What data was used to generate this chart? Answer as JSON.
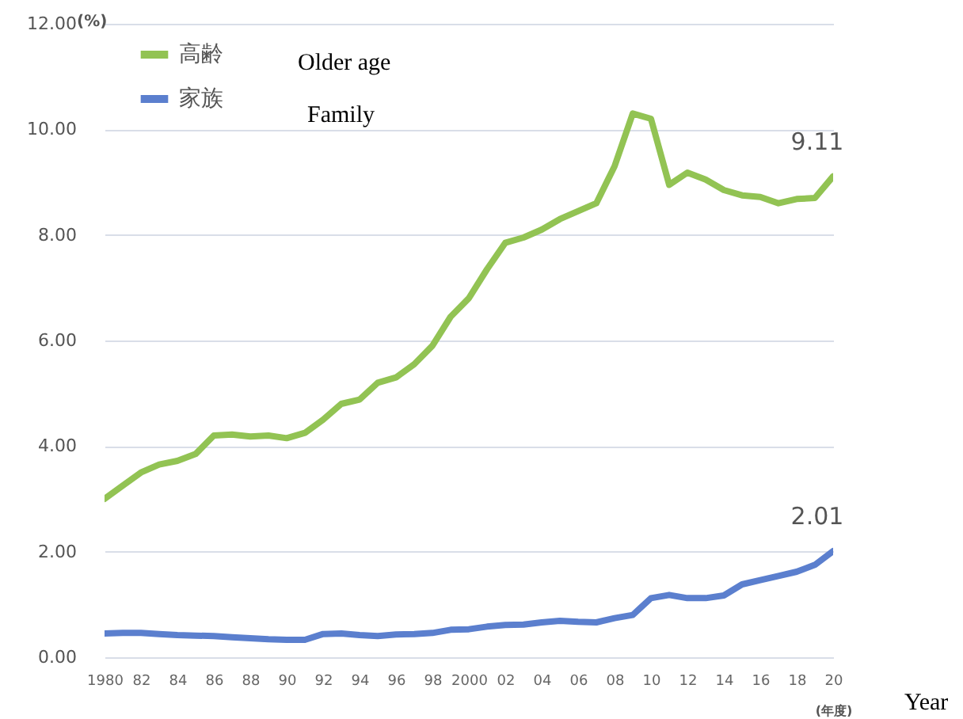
{
  "chart_data": {
    "type": "line",
    "xlabel": "(年度)",
    "ylabel": "(%)",
    "x": [
      1980,
      1981,
      1982,
      1983,
      1984,
      1985,
      1986,
      1987,
      1988,
      1989,
      1990,
      1991,
      1992,
      1993,
      1994,
      1995,
      1996,
      1997,
      1998,
      1999,
      2000,
      2001,
      2002,
      2003,
      2004,
      2005,
      2006,
      2007,
      2008,
      2009,
      2010,
      2011,
      2012,
      2013,
      2014,
      2015,
      2016,
      2017,
      2018,
      2019,
      2020
    ],
    "series": [
      {
        "name": "高齢",
        "color": "#92c353",
        "values": [
          3.0,
          3.25,
          3.5,
          3.65,
          3.72,
          3.85,
          4.2,
          4.22,
          4.18,
          4.2,
          4.15,
          4.25,
          4.5,
          4.8,
          4.88,
          5.2,
          5.3,
          5.55,
          5.9,
          6.45,
          6.8,
          7.35,
          7.85,
          7.95,
          8.1,
          8.3,
          8.45,
          8.6,
          9.3,
          10.3,
          10.2,
          8.95,
          9.18,
          9.05,
          8.85,
          8.75,
          8.72,
          8.6,
          8.68,
          8.7,
          9.11
        ],
        "value_labels": [
          null,
          null,
          null,
          null,
          null,
          null,
          null,
          null,
          null,
          null,
          null,
          null,
          null,
          null,
          null,
          null,
          null,
          null,
          null,
          null,
          null,
          null,
          null,
          null,
          null,
          null,
          null,
          null,
          null,
          null,
          null,
          null,
          null,
          null,
          null,
          null,
          null,
          null,
          null,
          null,
          "9.11"
        ]
      },
      {
        "name": "家族",
        "color": "#5b7fce",
        "values": [
          0.45,
          0.46,
          0.46,
          0.44,
          0.42,
          0.41,
          0.4,
          0.38,
          0.36,
          0.34,
          0.33,
          0.33,
          0.44,
          0.45,
          0.42,
          0.4,
          0.43,
          0.44,
          0.46,
          0.52,
          0.53,
          0.58,
          0.61,
          0.62,
          0.66,
          0.69,
          0.67,
          0.66,
          0.74,
          0.8,
          1.12,
          1.18,
          1.12,
          1.12,
          1.17,
          1.38,
          1.46,
          1.54,
          1.62,
          1.75,
          2.01
        ],
        "value_labels": [
          null,
          null,
          null,
          null,
          null,
          null,
          null,
          null,
          null,
          null,
          null,
          null,
          null,
          null,
          null,
          null,
          null,
          null,
          null,
          null,
          null,
          null,
          null,
          null,
          null,
          null,
          null,
          null,
          null,
          null,
          null,
          null,
          null,
          null,
          null,
          null,
          null,
          null,
          null,
          null,
          "2.01"
        ]
      }
    ],
    "xlim": [
      1980,
      2020
    ],
    "xticks": [
      {
        "value": 1980,
        "label": "1980"
      },
      {
        "value": 1982,
        "label": "82"
      },
      {
        "value": 1984,
        "label": "84"
      },
      {
        "value": 1986,
        "label": "86"
      },
      {
        "value": 1988,
        "label": "88"
      },
      {
        "value": 1990,
        "label": "90"
      },
      {
        "value": 1992,
        "label": "92"
      },
      {
        "value": 1994,
        "label": "94"
      },
      {
        "value": 1996,
        "label": "96"
      },
      {
        "value": 1998,
        "label": "98"
      },
      {
        "value": 2000,
        "label": "2000"
      },
      {
        "value": 2002,
        "label": "02"
      },
      {
        "value": 2004,
        "label": "04"
      },
      {
        "value": 2006,
        "label": "06"
      },
      {
        "value": 2008,
        "label": "08"
      },
      {
        "value": 2010,
        "label": "10"
      },
      {
        "value": 2012,
        "label": "12"
      },
      {
        "value": 2014,
        "label": "14"
      },
      {
        "value": 2016,
        "label": "16"
      },
      {
        "value": 2018,
        "label": "18"
      },
      {
        "value": 2020,
        "label": "20"
      }
    ],
    "ylim": [
      0,
      12
    ],
    "yticks": [
      {
        "value": 0,
        "label": "0.00"
      },
      {
        "value": 2,
        "label": "2.00"
      },
      {
        "value": 4,
        "label": "4.00"
      },
      {
        "value": 6,
        "label": "6.00"
      },
      {
        "value": 8,
        "label": "8.00"
      },
      {
        "value": 10,
        "label": "10.00"
      },
      {
        "value": 12,
        "label": "12.00"
      }
    ],
    "grid": "y",
    "legend": "top left",
    "marker": "none",
    "line_style": "solid",
    "annotations": [
      "Older age",
      "Family",
      "Year"
    ]
  }
}
